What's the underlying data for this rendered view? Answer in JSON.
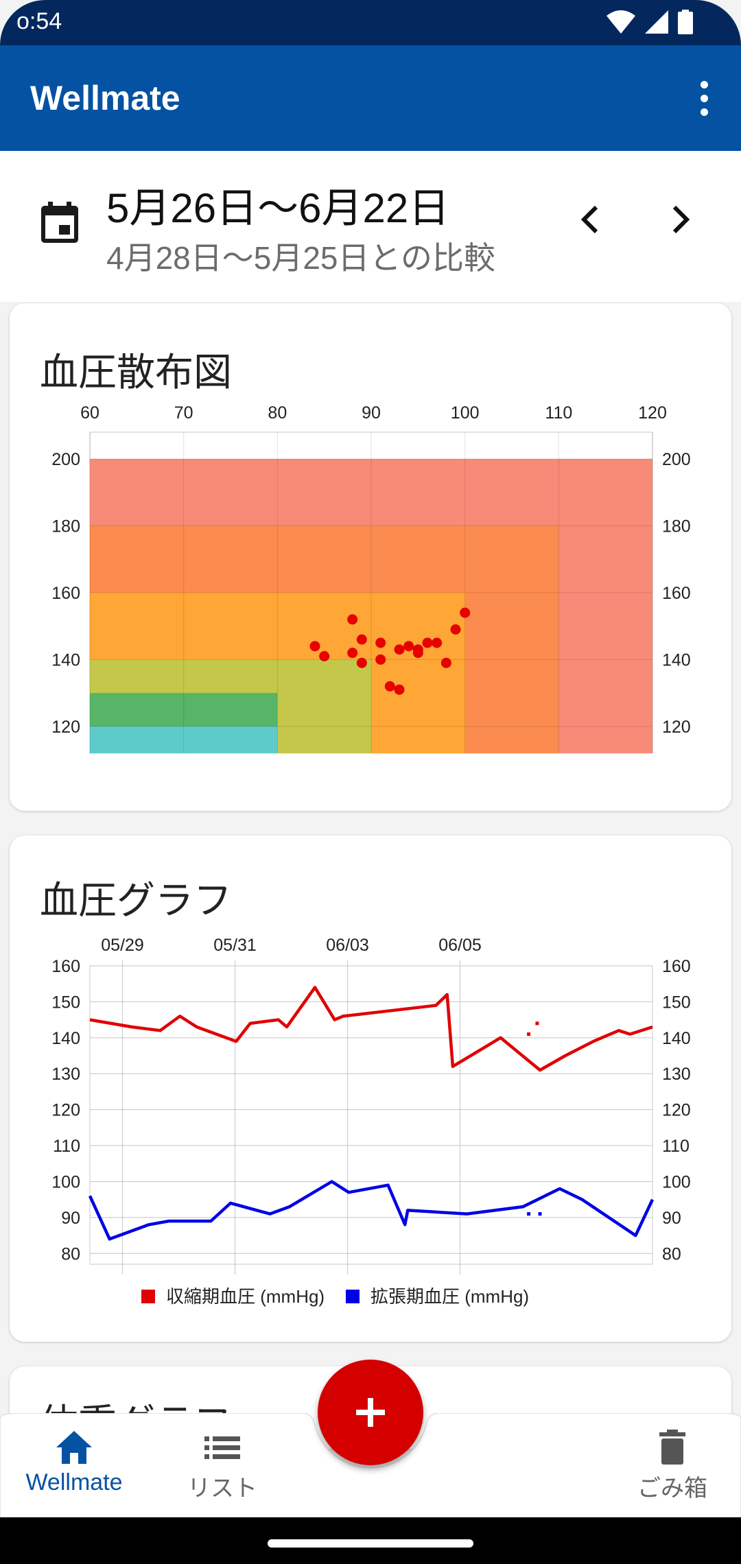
{
  "status_bar": {
    "time": "o:54"
  },
  "app_bar": {
    "title": "Wellmate"
  },
  "date_range": {
    "current": "5月26日〜6月22日",
    "compare": "4月28日〜5月25日との比較"
  },
  "scatter_card": {
    "title": "血圧散布図"
  },
  "bp_card": {
    "title": "血圧グラフ"
  },
  "weight_card": {
    "title": "体重グラフ"
  },
  "nav": {
    "home": "Wellmate",
    "list": "リスト",
    "trash": "ごみ箱"
  },
  "colors": {
    "primary": "#0552a2",
    "status_bar": "#04285e",
    "fab": "#d40000",
    "systolic": "#e00000",
    "diastolic": "#0000e6"
  },
  "icons": {
    "calendar": "calendar-icon",
    "prev": "chevron-left-icon",
    "next": "chevron-right-icon",
    "more": "more-vert-icon",
    "home": "home-icon",
    "list": "list-icon",
    "trash": "trash-icon",
    "add": "plus-icon"
  },
  "chart_data": [
    {
      "type": "scatter",
      "title": "血圧散布図",
      "x_ticks": [
        "60",
        "70",
        "80",
        "90",
        "100",
        "110",
        "120"
      ],
      "y_ticks": [
        "120",
        "140",
        "160",
        "180",
        "200"
      ],
      "xlim": [
        60,
        120
      ],
      "ylim": [
        112,
        208
      ],
      "zones": [
        {
          "x": [
            60,
            120
          ],
          "y": [
            112,
            200
          ],
          "color": "#f78b78"
        },
        {
          "x": [
            60,
            110
          ],
          "y": [
            112,
            180
          ],
          "color": "#fb8b4f"
        },
        {
          "x": [
            60,
            100
          ],
          "y": [
            112,
            160
          ],
          "color": "#fea636"
        },
        {
          "x": [
            60,
            90
          ],
          "y": [
            112,
            140
          ],
          "color": "#c4c74a"
        },
        {
          "x": [
            60,
            80
          ],
          "y": [
            112,
            130
          ],
          "color": "#58b466"
        },
        {
          "x": [
            60,
            80
          ],
          "y": [
            112,
            120
          ],
          "color": "#5ecbcb"
        }
      ],
      "points": [
        [
          84,
          144
        ],
        [
          85,
          141
        ],
        [
          88,
          152
        ],
        [
          89,
          146
        ],
        [
          88,
          142
        ],
        [
          89,
          139
        ],
        [
          91,
          145
        ],
        [
          91,
          140
        ],
        [
          92,
          132
        ],
        [
          93,
          131
        ],
        [
          93,
          143
        ],
        [
          94,
          144
        ],
        [
          95,
          142
        ],
        [
          95,
          143
        ],
        [
          96,
          145
        ],
        [
          97,
          145
        ],
        [
          98,
          139
        ],
        [
          99,
          149
        ],
        [
          100,
          154
        ]
      ],
      "point_color": "#e60000",
      "grid": true
    },
    {
      "type": "line",
      "title": "血圧グラフ",
      "x_ticks": [
        "05/29",
        "05/31",
        "06/03",
        "06/05"
      ],
      "y_ticks": [
        "80",
        "90",
        "100",
        "110",
        "120",
        "130",
        "140",
        "150",
        "160"
      ],
      "ylim": [
        77,
        160
      ],
      "series": [
        {
          "name": "収縮期血圧 (mmHg)",
          "color": "#e00000",
          "x": [
            0,
            0.75,
            1.25,
            1.6,
            1.9,
            2.6,
            2.85,
            3.35,
            3.5,
            4.0,
            4.35,
            4.5,
            6.15,
            6.35,
            6.45,
            7.3,
            8.0,
            8.45,
            8.95,
            9.4,
            9.6,
            10.0
          ],
          "values": [
            145,
            143,
            142,
            146,
            143,
            139,
            144,
            145,
            143,
            154,
            145,
            146,
            149,
            152,
            132,
            140,
            131,
            135,
            139,
            142,
            141,
            143
          ]
        },
        {
          "name": "拡張期血圧 (mmHg)",
          "color": "#0000e6",
          "x": [
            0,
            0.35,
            1.05,
            1.4,
            2.15,
            2.5,
            3.2,
            3.55,
            4.3,
            4.6,
            5.3,
            5.6,
            5.65,
            6.7,
            7.7,
            8.35,
            8.75,
            9.7,
            10.0
          ],
          "values": [
            96,
            84,
            88,
            89,
            89,
            94,
            91,
            93,
            100,
            97,
            99,
            88,
            92,
            91,
            93,
            98,
            95,
            85,
            95
          ]
        }
      ],
      "markers_systolic": [
        [
          7.8,
          141
        ],
        [
          7.95,
          144
        ]
      ],
      "markers_diastolic": [
        [
          7.8,
          91
        ],
        [
          8.0,
          91
        ]
      ],
      "legend": "bottom",
      "grid": true
    }
  ]
}
